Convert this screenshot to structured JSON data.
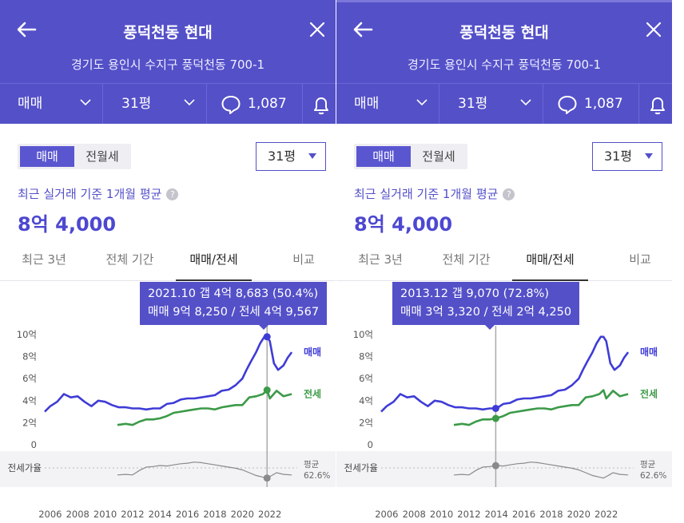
{
  "header": {
    "title": "풍덕천동 현대",
    "address": "경기도 용인시 수지구 풍덕천동 700-1"
  },
  "filters": {
    "deal_type": "매매",
    "size": "31평",
    "comments": "1,087"
  },
  "toggle": {
    "sale": "매매",
    "rent": "전월세"
  },
  "size_select": "31평",
  "basis_label": "최근 실거래 기준 1개월 평균",
  "help_glyph": "?",
  "avg_price": "8억 4,000",
  "tabs": [
    "최근 3년",
    "전체 기간",
    "매매/전세",
    "비교"
  ],
  "legend": {
    "sale": "매매",
    "jeonse": "전세",
    "ratio": "전세가율",
    "avg_label": "평균",
    "avg_value": "62.6%"
  },
  "colors": {
    "accent": "#5450c8",
    "sale": "#3f3cd6",
    "jeonse": "#3c9a48",
    "ratio": "#8a8a8a"
  },
  "panels": [
    {
      "tooltip_line1": "2021.10  갭 4억 8,683 (50.4%)",
      "tooltip_line2": "매매 9억 8,250 / 전세 4억 9,567",
      "cursor_year": 2021.8
    },
    {
      "tooltip_line1": "2013.12  갭 9,070 (72.8%)",
      "tooltip_line2": "매매 3억 3,320 / 전세 2억 4,250",
      "cursor_year": 2013.95
    }
  ],
  "chart_data": {
    "type": "line",
    "y_ticks": [
      "10억",
      "8억",
      "6억",
      "4억",
      "2억",
      "0"
    ],
    "x_ticks": [
      "2006",
      "2008",
      "2010",
      "2012",
      "2014",
      "2016",
      "2018",
      "2020",
      "2022"
    ],
    "ylim": [
      0,
      10
    ],
    "xlim": [
      2005.6,
      2024.0
    ],
    "series": [
      {
        "name": "매매",
        "x": [
          2005.6,
          2006.0,
          2006.5,
          2007.0,
          2007.5,
          2008.0,
          2008.5,
          2009.0,
          2009.5,
          2010.0,
          2010.5,
          2011.0,
          2011.5,
          2012.0,
          2012.5,
          2013.0,
          2013.5,
          2014.0,
          2014.5,
          2015.0,
          2015.5,
          2016.0,
          2016.5,
          2017.0,
          2017.5,
          2018.0,
          2018.5,
          2019.0,
          2019.5,
          2020.0,
          2020.3,
          2020.6,
          2021.0,
          2021.3,
          2021.6,
          2021.8,
          2022.0,
          2022.3,
          2022.6,
          2023.0,
          2023.3,
          2023.6
        ],
        "values": [
          3.0,
          3.5,
          3.9,
          4.6,
          4.3,
          4.4,
          3.9,
          3.5,
          4.0,
          3.9,
          3.6,
          3.4,
          3.4,
          3.3,
          3.3,
          3.2,
          3.3,
          3.3,
          3.7,
          3.8,
          4.1,
          4.2,
          4.2,
          4.3,
          4.4,
          4.5,
          4.9,
          5.0,
          5.4,
          6.0,
          6.8,
          7.5,
          8.4,
          9.2,
          9.8,
          9.8,
          9.4,
          7.4,
          6.8,
          7.2,
          7.9,
          8.4
        ]
      },
      {
        "name": "전세",
        "x": [
          2010.9,
          2011.5,
          2012.0,
          2012.5,
          2013.0,
          2013.5,
          2014.0,
          2014.5,
          2015.0,
          2015.5,
          2016.0,
          2016.5,
          2017.0,
          2017.5,
          2018.0,
          2018.5,
          2019.0,
          2019.5,
          2020.0,
          2020.5,
          2021.0,
          2021.5,
          2021.8,
          2022.0,
          2022.5,
          2023.0,
          2023.6
        ],
        "values": [
          1.8,
          1.9,
          1.8,
          2.1,
          2.3,
          2.3,
          2.4,
          2.6,
          2.9,
          3.0,
          3.1,
          3.2,
          3.3,
          3.3,
          3.2,
          3.4,
          3.5,
          3.6,
          3.6,
          4.3,
          4.4,
          4.6,
          4.96,
          4.2,
          4.9,
          4.4,
          4.6
        ]
      },
      {
        "name": "전세가율",
        "x": [
          2010.9,
          2011.5,
          2012.0,
          2012.5,
          2013.0,
          2013.5,
          2014.0,
          2014.5,
          2015.0,
          2015.5,
          2016.0,
          2016.5,
          2017.0,
          2017.5,
          2018.0,
          2018.5,
          2019.0,
          2019.5,
          2020.0,
          2020.5,
          2021.0,
          2021.5,
          2021.8,
          2022.0,
          2022.5,
          2023.0,
          2023.6
        ],
        "values": [
          56,
          57,
          56,
          64,
          70,
          71,
          72.8,
          72,
          74,
          76,
          77,
          79,
          78,
          76,
          74,
          72,
          70,
          68,
          65,
          60,
          55,
          52,
          50.4,
          53,
          60,
          57,
          56
        ]
      }
    ]
  }
}
